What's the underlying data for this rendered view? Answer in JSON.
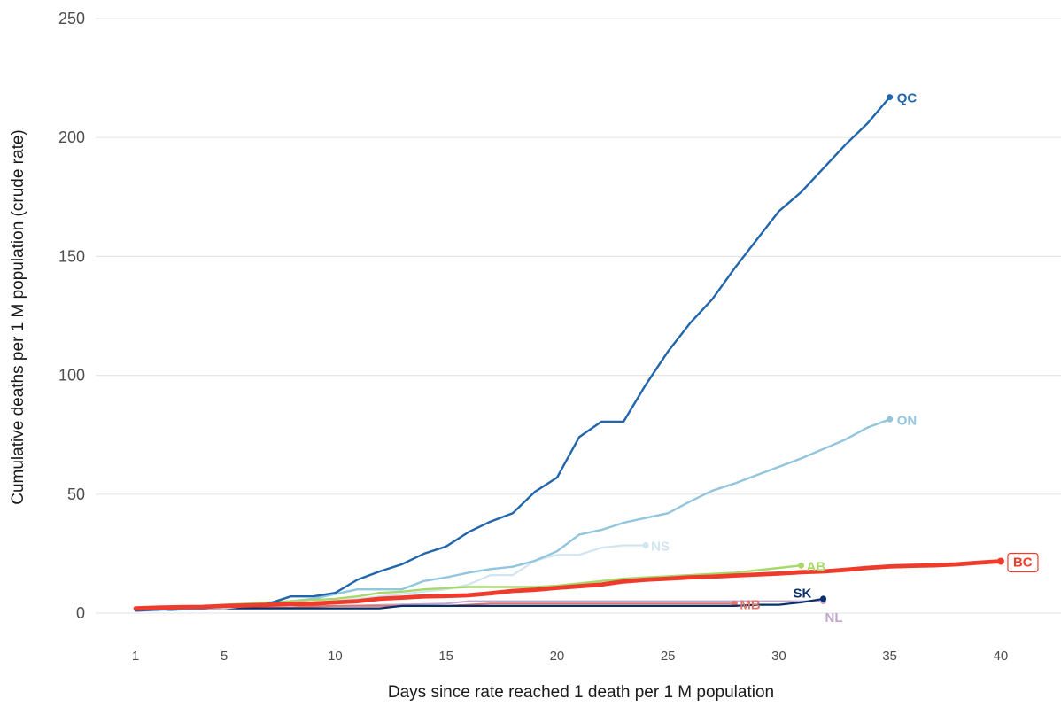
{
  "chart_data": {
    "type": "line",
    "title": "",
    "xlabel": "Days since rate reached 1 death per 1 M population",
    "ylabel": "Cumulative deaths per 1 M population (crude rate)",
    "xlim": [
      0.5,
      41.5
    ],
    "ylim": [
      0,
      250
    ],
    "x_ticks": [
      1,
      5,
      10,
      15,
      20,
      25,
      30,
      35,
      40
    ],
    "y_ticks": [
      0,
      50,
      100,
      150,
      200,
      250
    ],
    "grid": "horizontal",
    "legend": "none (end-of-line labels)",
    "series": [
      {
        "name": "QC",
        "color": "#2166ac",
        "width": 2.4,
        "x": [
          1,
          2,
          3,
          4,
          5,
          6,
          7,
          8,
          9,
          10,
          11,
          12,
          13,
          14,
          15,
          16,
          17,
          18,
          19,
          20,
          21,
          22,
          23,
          24,
          25,
          26,
          27,
          28,
          29,
          30,
          31,
          32,
          33,
          34,
          35
        ],
        "y": [
          1,
          1.5,
          2,
          2,
          3,
          3,
          4,
          7,
          7,
          8.5,
          14,
          17.5,
          20.5,
          25,
          28,
          34,
          38.5,
          42,
          51,
          57,
          74,
          80.5,
          80.5,
          96,
          110,
          122,
          132,
          145,
          157,
          169,
          177,
          187,
          197,
          206,
          217
        ]
      },
      {
        "name": "ON",
        "color": "#92c5de",
        "width": 2.4,
        "x": [
          1,
          2,
          3,
          4,
          5,
          6,
          7,
          8,
          9,
          10,
          11,
          12,
          13,
          14,
          15,
          16,
          17,
          18,
          19,
          20,
          21,
          22,
          23,
          24,
          25,
          26,
          27,
          28,
          29,
          30,
          31,
          32,
          33,
          34,
          35
        ],
        "y": [
          1,
          1.5,
          2,
          2,
          3,
          3,
          4,
          5,
          6,
          8,
          10,
          10,
          10,
          13.5,
          15,
          17,
          18.5,
          19.5,
          22,
          26,
          33,
          35,
          38,
          40,
          42,
          47,
          51.5,
          54.5,
          58,
          61.5,
          65,
          69,
          73,
          78,
          81.5
        ]
      },
      {
        "name": "NS",
        "color": "#d1e5f0",
        "width": 2.2,
        "x": [
          1,
          2,
          3,
          4,
          5,
          6,
          7,
          8,
          9,
          10,
          11,
          12,
          13,
          14,
          15,
          16,
          17,
          18,
          19,
          20,
          21,
          22,
          23,
          24
        ],
        "y": [
          1,
          1,
          2,
          2,
          2,
          3,
          3,
          3,
          4,
          5,
          6,
          7,
          8,
          9,
          10,
          12,
          16,
          16,
          22,
          24.5,
          24.5,
          27.5,
          28.5,
          28.5
        ]
      },
      {
        "name": "AB",
        "color": "#a6d96a",
        "width": 2.4,
        "x": [
          1,
          2,
          3,
          4,
          5,
          6,
          7,
          8,
          9,
          10,
          11,
          12,
          13,
          14,
          15,
          16,
          17,
          18,
          19,
          20,
          21,
          22,
          23,
          24,
          25,
          26,
          27,
          28,
          29,
          30,
          31
        ],
        "y": [
          1,
          2,
          2,
          2.5,
          3.5,
          4,
          4.5,
          5,
          5.5,
          6,
          7,
          8.5,
          9,
          10,
          10.5,
          11,
          11,
          11,
          11,
          11.5,
          12.5,
          13.5,
          14.5,
          15,
          15.5,
          16,
          16.5,
          17,
          18,
          19,
          20
        ]
      },
      {
        "name": "BC",
        "color": "#ef3b2c",
        "width": 4.8,
        "x": [
          1,
          2,
          3,
          4,
          5,
          6,
          7,
          8,
          9,
          10,
          11,
          12,
          13,
          14,
          15,
          16,
          17,
          18,
          19,
          20,
          21,
          22,
          23,
          24,
          25,
          26,
          27,
          28,
          29,
          30,
          31,
          32,
          33,
          34,
          35,
          36,
          37,
          38,
          39,
          40
        ],
        "y": [
          2,
          2.3,
          2.5,
          2.6,
          3,
          3.2,
          3.5,
          3.8,
          4,
          4.5,
          5,
          6,
          6.5,
          7,
          7.2,
          7.5,
          8.3,
          9.3,
          9.8,
          10.6,
          11.3,
          12,
          13.3,
          14,
          14.5,
          15,
          15.3,
          15.8,
          16.2,
          16.6,
          17.2,
          17.5,
          18.2,
          19,
          19.6,
          19.9,
          20.1,
          20.5,
          21.2,
          21.8
        ]
      },
      {
        "name": "SK",
        "color": "#08306b",
        "width": 2.2,
        "x": [
          1,
          5,
          10,
          12,
          13,
          14,
          15,
          16,
          17,
          18,
          19,
          20,
          21,
          22,
          23,
          24,
          25,
          26,
          27,
          28,
          29,
          30,
          31,
          32
        ],
        "y": [
          1,
          2,
          2,
          2,
          3,
          3,
          3,
          3,
          3,
          3,
          3,
          3,
          3,
          3,
          3,
          3,
          3,
          3,
          3,
          3,
          3.5,
          3.5,
          4.5,
          6
        ]
      },
      {
        "name": "MB",
        "color": "#e0766b",
        "width": 2.0,
        "x": [
          1,
          5,
          10,
          15,
          17,
          18,
          20,
          25,
          28
        ],
        "y": [
          1,
          2,
          3,
          3,
          4,
          4,
          4,
          4,
          4
        ]
      },
      {
        "name": "NL",
        "color": "#c2a5cf",
        "width": 2.0,
        "x": [
          1,
          5,
          10,
          15,
          16,
          17,
          20,
          25,
          30,
          32
        ],
        "y": [
          1,
          2,
          3,
          4,
          5,
          5,
          5,
          5,
          5,
          5
        ]
      }
    ],
    "end_labels": [
      {
        "name": "QC",
        "color": "#2166ac"
      },
      {
        "name": "ON",
        "color": "#92c5de"
      },
      {
        "name": "NS",
        "color": "#d1e5f0"
      },
      {
        "name": "AB",
        "color": "#a6d96a"
      },
      {
        "name": "BC",
        "color": "#ef3b2c",
        "boxed": true
      },
      {
        "name": "SK",
        "color": "#08306b"
      },
      {
        "name": "MB",
        "color": "#e0766b"
      },
      {
        "name": "NL",
        "color": "#c2a5cf"
      }
    ]
  }
}
